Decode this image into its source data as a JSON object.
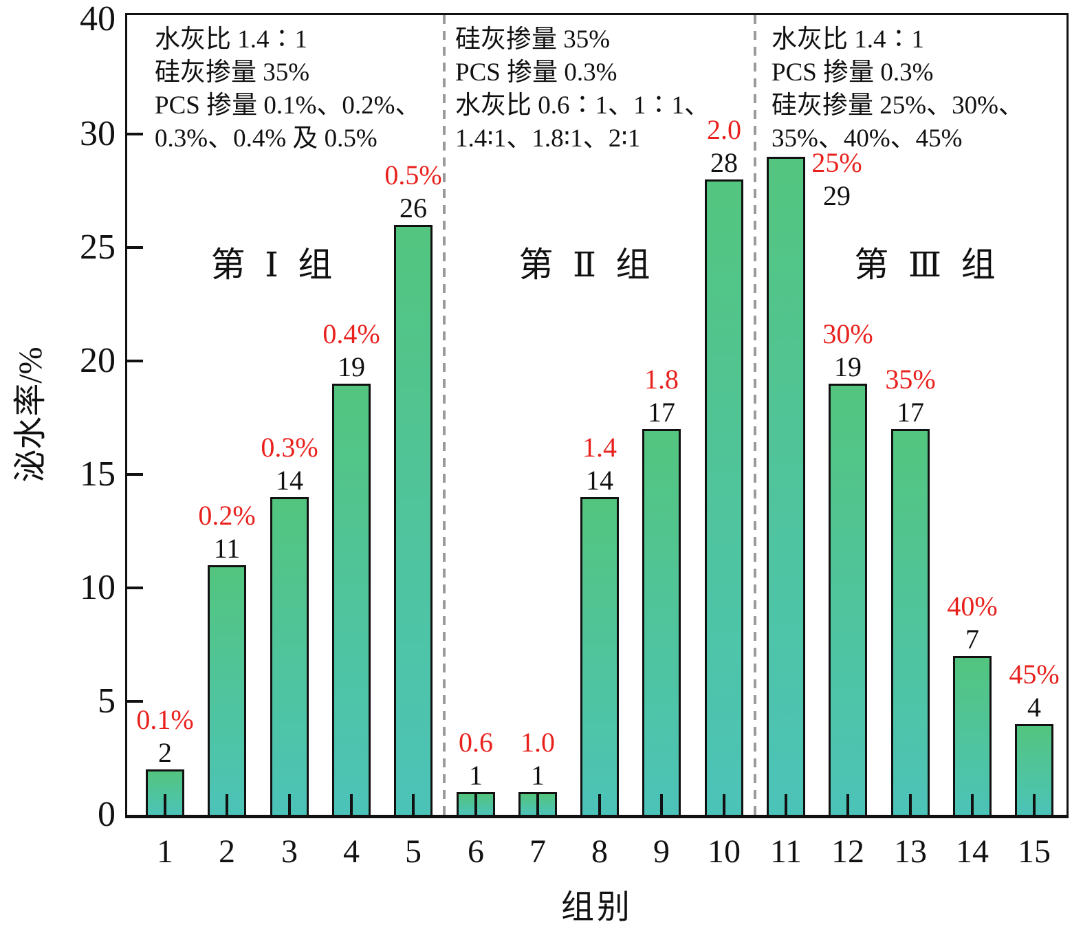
{
  "chart_data": {
    "type": "bar",
    "title": "",
    "xlabel": "组别",
    "ylabel": "泌水率/%",
    "grid": false,
    "legend_position": "none",
    "y_axis": {
      "tick_labels": [
        "0",
        "5",
        "10",
        "15",
        "20",
        "25",
        "30",
        "40"
      ],
      "note": "top label 40 sits at the axis top (≈35 on the linear px scale); inward tick marks only at 5–30"
    },
    "categories": [
      "1",
      "2",
      "3",
      "4",
      "5",
      "6",
      "7",
      "8",
      "9",
      "10",
      "11",
      "12",
      "13",
      "14",
      "15"
    ],
    "values": [
      2,
      11,
      14,
      19,
      26,
      1,
      1,
      14,
      17,
      28,
      29,
      19,
      17,
      7,
      4
    ],
    "bar_top_labels_red": [
      "0.1%",
      "0.2%",
      "0.3%",
      "0.4%",
      "0.5%",
      "0.6",
      "1.0",
      "1.4",
      "1.8",
      "2.0",
      "25%",
      "30%",
      "35%",
      "40%",
      "45%"
    ],
    "groups": [
      {
        "name": "第 Ⅰ 组",
        "categories": "1-5",
        "annotation_lines": [
          "水灰比 1.4∶1",
          "硅灰掺量 35%",
          "PCS 掺量 0.1%、0.2%、",
          "0.3%、0.4% 及 0.5%"
        ]
      },
      {
        "name": "第 Ⅱ 组",
        "categories": "6-10",
        "annotation_lines": [
          "硅灰掺量 35%",
          "PCS 掺量 0.3%",
          "水灰比 0.6∶1、1∶1、",
          "1.4∶1、1.8∶1、2∶1"
        ]
      },
      {
        "name": "第 Ⅲ 组",
        "categories": "11-15",
        "annotation_lines": [
          "水灰比 1.4∶1",
          "PCS 掺量 0.3%",
          "硅灰掺量 25%、30%、",
          "35%、40%、45%"
        ]
      }
    ],
    "separators_after_category": [
      "5",
      "10"
    ],
    "colors": {
      "bar_gradient_top": "#53c57f",
      "bar_gradient_bottom": "#4cc3b8",
      "red_label": "#e8211d",
      "axis": "#111111",
      "separator": "#9a9a9a"
    }
  }
}
